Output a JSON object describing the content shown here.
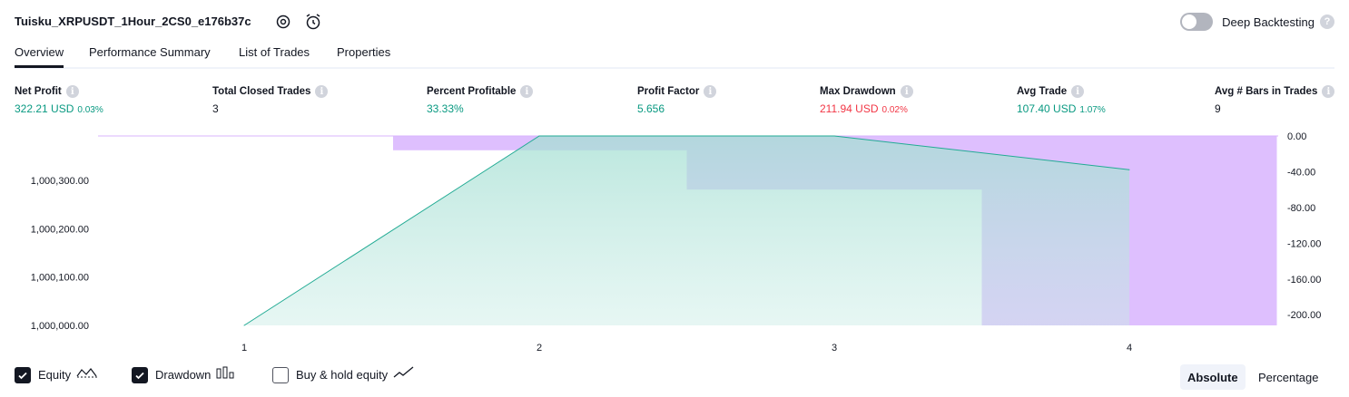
{
  "header": {
    "strategy_title": "Tuisku_XRPUSDT_1Hour_2CS0_e176b37c",
    "deep_backtesting_label": "Deep Backtesting",
    "deep_backtesting_enabled": false,
    "help_glyph": "?",
    "icons": [
      "settings-icon",
      "add-alert-icon"
    ]
  },
  "tabs": [
    {
      "label": "Overview",
      "active": true
    },
    {
      "label": "Performance Summary",
      "active": false
    },
    {
      "label": "List of Trades",
      "active": false
    },
    {
      "label": "Properties",
      "active": false
    }
  ],
  "info_glyph": "i",
  "stats": [
    {
      "label": "Net Profit",
      "value": "322.21 USD",
      "pct": "0.03%",
      "color": "green"
    },
    {
      "label": "Total Closed Trades",
      "value": "3",
      "pct": "",
      "color": "dark"
    },
    {
      "label": "Percent Profitable",
      "value": "33.33%",
      "pct": "",
      "color": "green"
    },
    {
      "label": "Profit Factor",
      "value": "5.656",
      "pct": "",
      "color": "green"
    },
    {
      "label": "Max Drawdown",
      "value": "211.94 USD",
      "pct": "0.02%",
      "color": "red"
    },
    {
      "label": "Avg Trade",
      "value": "107.40 USD",
      "pct": "1.07%",
      "color": "green"
    },
    {
      "label": "Avg # Bars in Trades",
      "value": "9",
      "pct": "",
      "color": "dark"
    }
  ],
  "chart_data": {
    "type": "area",
    "x_ticks": [
      "1",
      "2",
      "3",
      "4"
    ],
    "left_axis": {
      "ticks": [
        "1,000,300.00",
        "1,000,200.00",
        "1,000,100.00",
        "1,000,000.00"
      ],
      "tick_values": [
        1000300,
        1000200,
        1000100,
        1000000
      ],
      "range": [
        1000000,
        1000392
      ]
    },
    "right_axis": {
      "ticks": [
        "0.00",
        "-40.00",
        "-80.00",
        "-120.00",
        "-160.00",
        "-200.00"
      ],
      "tick_values": [
        0,
        -40,
        -80,
        -120,
        -160,
        -200
      ],
      "range": [
        -211.94,
        0
      ]
    },
    "equity": {
      "x": [
        1,
        2,
        3,
        4
      ],
      "values": [
        1000000,
        1000392,
        1000392,
        1000322.21
      ],
      "color": "#22ab94"
    },
    "drawdown_bars": [
      {
        "x_from": 1.5,
        "x_to": 2.5,
        "value": -16
      },
      {
        "x_from": 2.5,
        "x_to": 3.5,
        "value": -60
      },
      {
        "x_from": 3.5,
        "x_to": 4.5,
        "value": -211.94
      }
    ],
    "drawdown_color": "#d8b4fe",
    "buy_hold_visible": false
  },
  "footer": {
    "legend": [
      {
        "label": "Equity",
        "checked": true
      },
      {
        "label": "Drawdown",
        "checked": true
      },
      {
        "label": "Buy & hold equity",
        "checked": false
      }
    ],
    "modes": [
      {
        "label": "Absolute",
        "active": true
      },
      {
        "label": "Percentage",
        "active": false
      }
    ]
  }
}
